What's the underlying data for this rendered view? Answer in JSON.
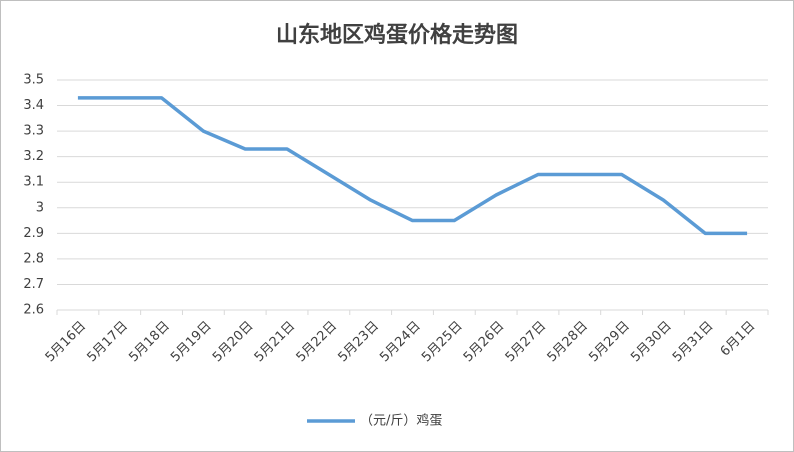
{
  "chart_data": {
    "type": "line",
    "title": "山东地区鸡蛋价格走势图",
    "categories": [
      "5月16日",
      "5月17日",
      "5月18日",
      "5月19日",
      "5月20日",
      "5月21日",
      "5月22日",
      "5月23日",
      "5月24日",
      "5月25日",
      "5月26日",
      "5月27日",
      "5月28日",
      "5月29日",
      "5月30日",
      "5月31日",
      "6月1日"
    ],
    "series": [
      {
        "name": "（元/斤）鸡蛋",
        "color": "#5b9bd5",
        "values": [
          3.43,
          3.43,
          3.43,
          3.3,
          3.23,
          3.23,
          3.13,
          3.03,
          2.95,
          2.95,
          3.05,
          3.13,
          3.13,
          3.13,
          3.03,
          2.9,
          2.9
        ]
      }
    ],
    "ylim": [
      2.6,
      3.5
    ],
    "yticks": [
      2.6,
      2.7,
      2.8,
      2.9,
      3,
      3.1,
      3.2,
      3.3,
      3.4,
      3.5
    ],
    "grid": true,
    "legend": "bottom"
  }
}
